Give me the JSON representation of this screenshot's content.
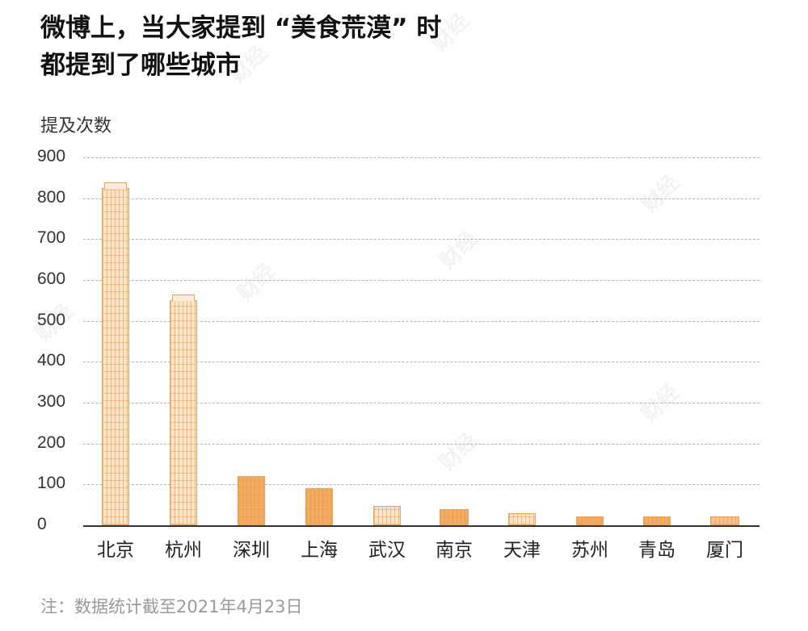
{
  "title_line1": "微博上，当大家提到 “美食荒漠” 时",
  "title_line2": "都提到了哪些城市",
  "watermark": "财经",
  "note": "注：数据统计截至2021年4月23日",
  "chart_data": {
    "type": "bar",
    "title": "微博上，当大家提到“美食荒漠”时都提到了哪些城市",
    "xlabel": "",
    "ylabel": "提及次数",
    "ylim": [
      0,
      900
    ],
    "yticks": [
      0,
      100,
      200,
      300,
      400,
      500,
      600,
      700,
      800,
      900
    ],
    "grid": true,
    "categories": [
      "北京",
      "杭州",
      "深圳",
      "上海",
      "武汉",
      "南京",
      "天津",
      "苏州",
      "青岛",
      "厦门"
    ],
    "values": [
      825,
      550,
      120,
      90,
      47,
      40,
      30,
      22,
      22,
      22
    ],
    "bar_color": "#f2ad63",
    "note": "注：数据统计截至2021年4月23日"
  }
}
